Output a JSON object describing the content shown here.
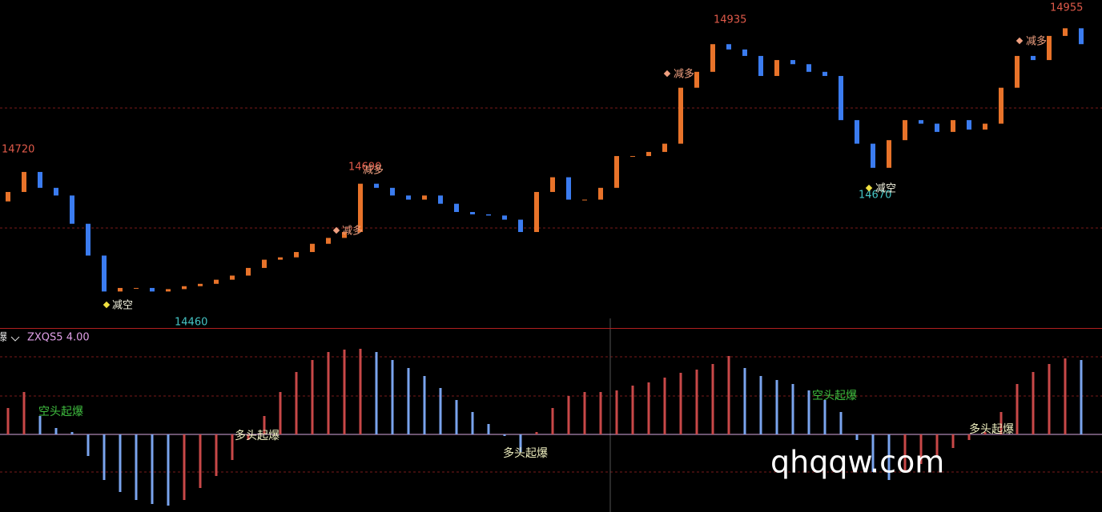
{
  "chart_data": [
    {
      "type": "candlestick",
      "price_labels": [
        14720,
        14690,
        14460,
        14935,
        14670,
        14955
      ],
      "signals": [
        "减空",
        "减多",
        "减多",
        "减多",
        "减空",
        "减多"
      ],
      "open": [
        14650,
        14666,
        14700,
        14673,
        14660,
        14612,
        14558,
        14497,
        14503,
        14503,
        14497,
        14501,
        14506,
        14510,
        14517,
        14524,
        14537,
        14551,
        14555,
        14564,
        14578,
        14588,
        14598,
        14680,
        14673,
        14660,
        14653,
        14660,
        14646,
        14632,
        14628,
        14626,
        14619,
        14598,
        14666,
        14691,
        14653,
        14653,
        14673,
        14727,
        14727,
        14734,
        14748,
        14843,
        14870,
        14917,
        14908,
        14897,
        14863,
        14890,
        14883,
        14870,
        14863,
        14788,
        14748,
        14707,
        14754,
        14788,
        14782,
        14768,
        14788,
        14772,
        14782,
        14843,
        14897,
        14890,
        14931,
        14944
      ],
      "close": [
        14666,
        14700,
        14673,
        14660,
        14612,
        14558,
        14497,
        14503,
        14503,
        14497,
        14501,
        14506,
        14510,
        14517,
        14524,
        14537,
        14551,
        14555,
        14564,
        14578,
        14588,
        14598,
        14680,
        14673,
        14660,
        14653,
        14660,
        14646,
        14632,
        14628,
        14626,
        14619,
        14598,
        14666,
        14691,
        14653,
        14653,
        14673,
        14727,
        14727,
        14734,
        14748,
        14843,
        14870,
        14917,
        14908,
        14897,
        14863,
        14890,
        14883,
        14870,
        14863,
        14788,
        14748,
        14707,
        14754,
        14788,
        14782,
        14768,
        14788,
        14772,
        14782,
        14843,
        14897,
        14890,
        14931,
        14944,
        14917
      ],
      "up_color": "#e8732a",
      "down_color": "#3b7cf0",
      "ylim": [
        14435,
        14992
      ]
    },
    {
      "type": "bar",
      "title_prefix": "爆",
      "title": "ZXQS5 4.00",
      "signals": [
        "空头起爆",
        "多头起爆",
        "多头起爆",
        "空头起爆",
        "多头起爆"
      ],
      "values": [
        16.5,
        26.5,
        11.5,
        4,
        1.5,
        -13.5,
        -28.5,
        -36,
        -41,
        -43.5,
        -44.5,
        -41,
        -33.5,
        -26,
        -16,
        -3.5,
        11.5,
        26.5,
        39,
        46.5,
        51.5,
        53,
        53.5,
        51.5,
        46.5,
        41.5,
        36.5,
        29,
        21.5,
        14,
        6.5,
        -1,
        -11,
        1.5,
        16.5,
        24,
        26.5,
        26.5,
        27.5,
        30.5,
        32.5,
        35.5,
        38.5,
        40.5,
        44,
        49,
        41.5,
        36.5,
        34,
        31.5,
        27.5,
        21.5,
        14,
        -3.5,
        -23.5,
        -28.5,
        -23.5,
        -18.5,
        -13.5,
        -8.5,
        -3.5,
        1.5,
        14,
        31.5,
        39,
        44,
        47.5,
        46.5
      ],
      "up_color": "#c84848",
      "down_color": "#7aa4ee",
      "ylim": [
        -48,
        55
      ]
    }
  ],
  "watermark": "qhqqw.com"
}
